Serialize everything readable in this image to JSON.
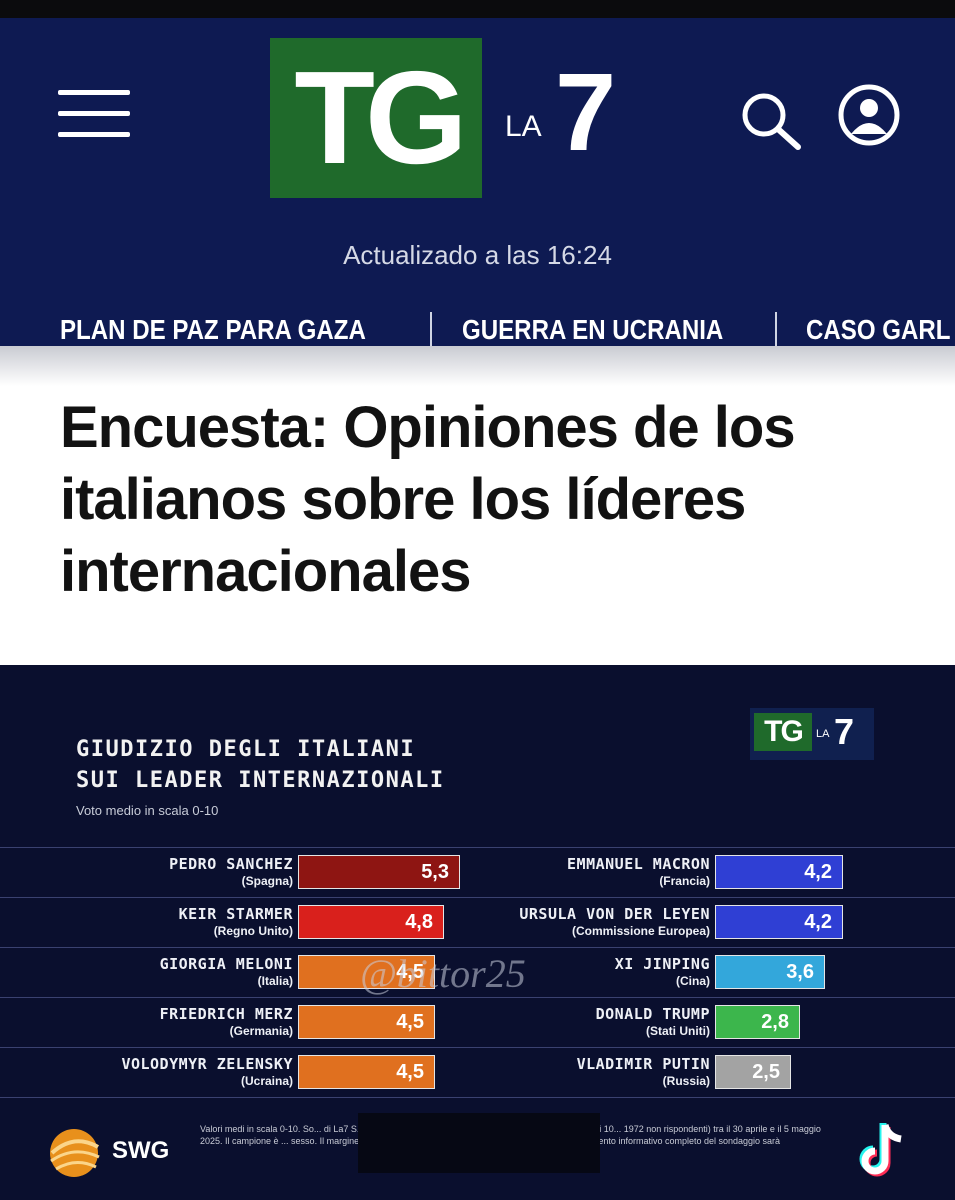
{
  "app": {
    "brand": "TG LA7",
    "logo_tg": "TG",
    "logo_la": "LA",
    "logo_seven": "7",
    "updated": "Actualizado a las 16:24",
    "nav_icons": [
      "menu-icon",
      "search-icon",
      "user-icon"
    ],
    "colors": {
      "header_bg": "#0e1a52",
      "logo_green": "#1f6a2b",
      "panel_bg": "#0a0f2e"
    }
  },
  "topics": [
    "PLAN DE PAZ PARA GAZA",
    "GUERRA EN UCRANIA",
    "CASO GARL"
  ],
  "article": {
    "title": "Encuesta: Opiniones de los italianos sobre los líderes internacionales"
  },
  "chart": {
    "title_line1": "GIUDIZIO DEGLI ITALIANI",
    "title_line2": "SUI LEADER INTERNAZIONALI",
    "subtitle": "Voto medio in scala 0-10",
    "watermark": "@bittor25",
    "source": "SWG",
    "footnote": "Valori medi in scala 0-10. So... di La7 S.p.A.. Indagine condotta con tecnica CAWI su un campione di 10... 1972 non rispondenti) tra il 30 aprile e il 5 maggio 2025. Il campione è ... sesso. Il margine d'errore statistico dei dati riportati è del 3,1% a un ... documento informativo completo del sondaggio sarà"
  },
  "chart_data": {
    "type": "bar",
    "title": "GIUDIZIO DEGLI ITALIANI SUI LEADER INTERNAZIONALI",
    "subtitle": "Voto medio in scala 0-10",
    "xlim": [
      0,
      10
    ],
    "grid": false,
    "legend": "none",
    "left": [
      {
        "name": "PEDRO SANCHEZ",
        "country": "(Spagna)",
        "value": 5.3,
        "label": "5,3",
        "color": "#8e1512"
      },
      {
        "name": "KEIR STARMER",
        "country": "(Regno Unito)",
        "value": 4.8,
        "label": "4,8",
        "color": "#d9201c"
      },
      {
        "name": "GIORGIA MELONI",
        "country": "(Italia)",
        "value": 4.5,
        "label": "4,5",
        "color": "#e0701f"
      },
      {
        "name": "FRIEDRICH MERZ",
        "country": "(Germania)",
        "value": 4.5,
        "label": "4,5",
        "color": "#e0701f"
      },
      {
        "name": "VOLODYMYR ZELENSKY",
        "country": "(Ucraina)",
        "value": 4.5,
        "label": "4,5",
        "color": "#e0701f"
      }
    ],
    "right": [
      {
        "name": "EMMANUEL MACRON",
        "country": "(Francia)",
        "value": 4.2,
        "label": "4,2",
        "color": "#2f3fd4"
      },
      {
        "name": "URSULA VON DER LEYEN",
        "country": "(Commissione Europea)",
        "value": 4.2,
        "label": "4,2",
        "color": "#2f3fd4"
      },
      {
        "name": "XI JINPING",
        "country": "(Cina)",
        "value": 3.6,
        "label": "3,6",
        "color": "#33a7db"
      },
      {
        "name": "DONALD TRUMP",
        "country": "(Stati Uniti)",
        "value": 2.8,
        "label": "2,8",
        "color": "#3cb64c"
      },
      {
        "name": "VLADIMIR PUTIN",
        "country": "(Russia)",
        "value": 2.5,
        "label": "2,5",
        "color": "#a3a3a3"
      }
    ]
  }
}
